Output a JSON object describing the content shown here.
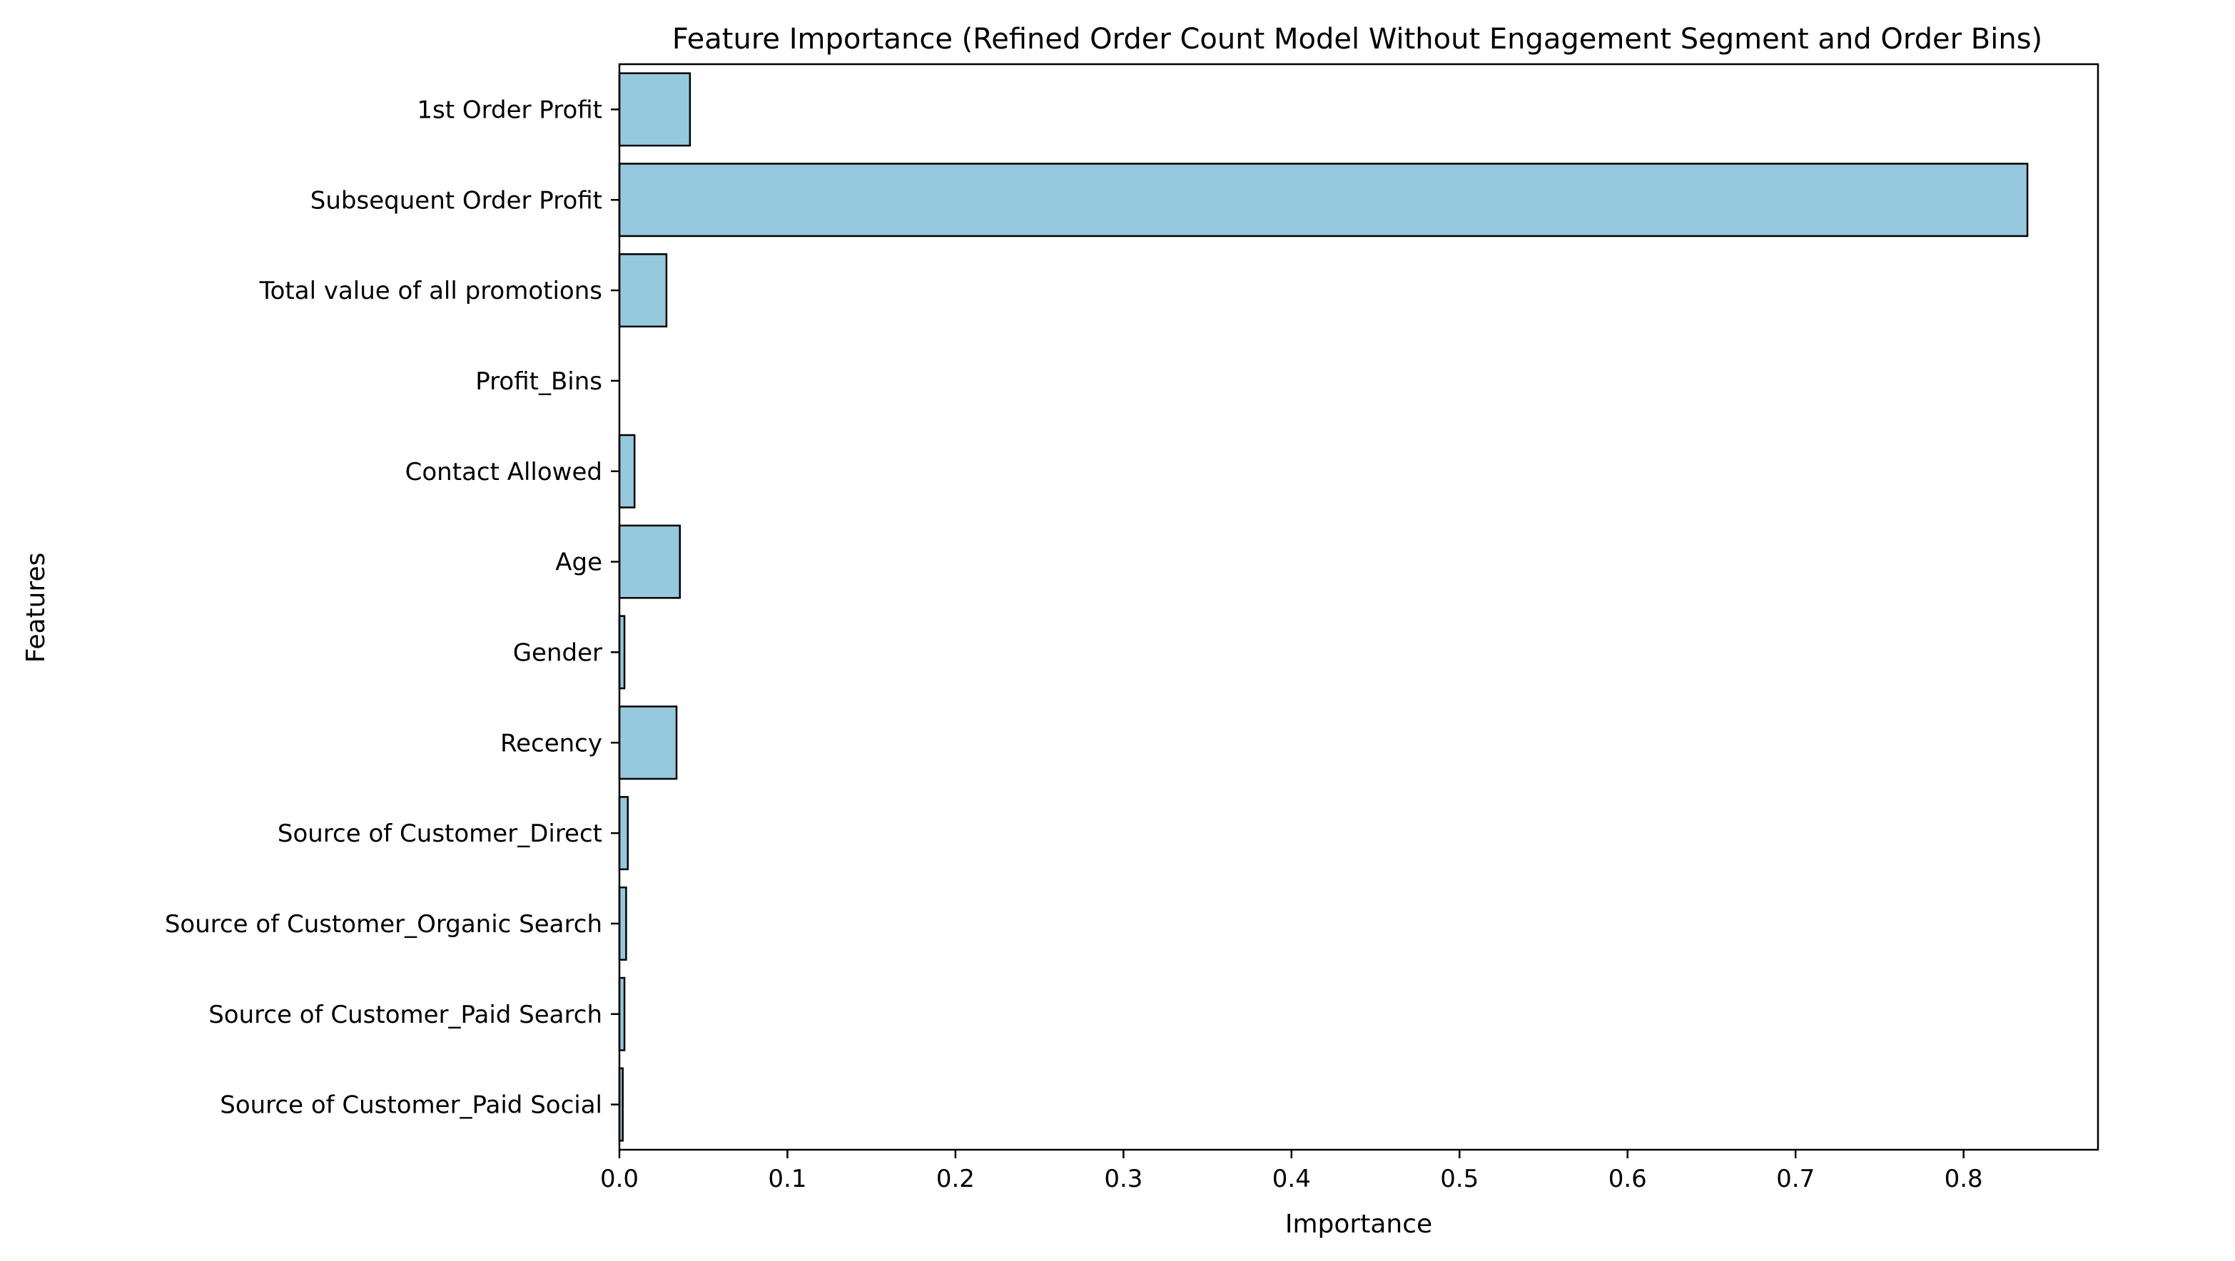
{
  "colors": {
    "bar_fill": "#95c9dd",
    "bar_edge": "#000000",
    "axes": "#000000",
    "background": "#ffffff"
  },
  "chart_data": {
    "type": "bar",
    "orientation": "horizontal",
    "title": "Feature Importance (Refined Order Count Model Without Engagement Segment and Order Bins)",
    "xlabel": "Importance",
    "ylabel": "Features",
    "xlim": [
      0,
      0.88
    ],
    "xticks": [
      0.0,
      0.1,
      0.2,
      0.3,
      0.4,
      0.5,
      0.6,
      0.7,
      0.8
    ],
    "xtick_labels": [
      "0.0",
      "0.1",
      "0.2",
      "0.3",
      "0.4",
      "0.5",
      "0.6",
      "0.7",
      "0.8"
    ],
    "grid": false,
    "legend": "none",
    "categories": [
      "1st Order Profit",
      "Subsequent Order Profit",
      "Total value of all promotions",
      "Profit_Bins",
      "Contact Allowed",
      "Age",
      "Gender",
      "Recency",
      "Source of Customer_Direct",
      "Source of Customer_Organic Search",
      "Source of Customer_Paid Search",
      "Source of Customer_Paid Social"
    ],
    "values": [
      0.042,
      0.838,
      0.028,
      0.0,
      0.009,
      0.036,
      0.003,
      0.034,
      0.005,
      0.004,
      0.003,
      0.002
    ]
  }
}
